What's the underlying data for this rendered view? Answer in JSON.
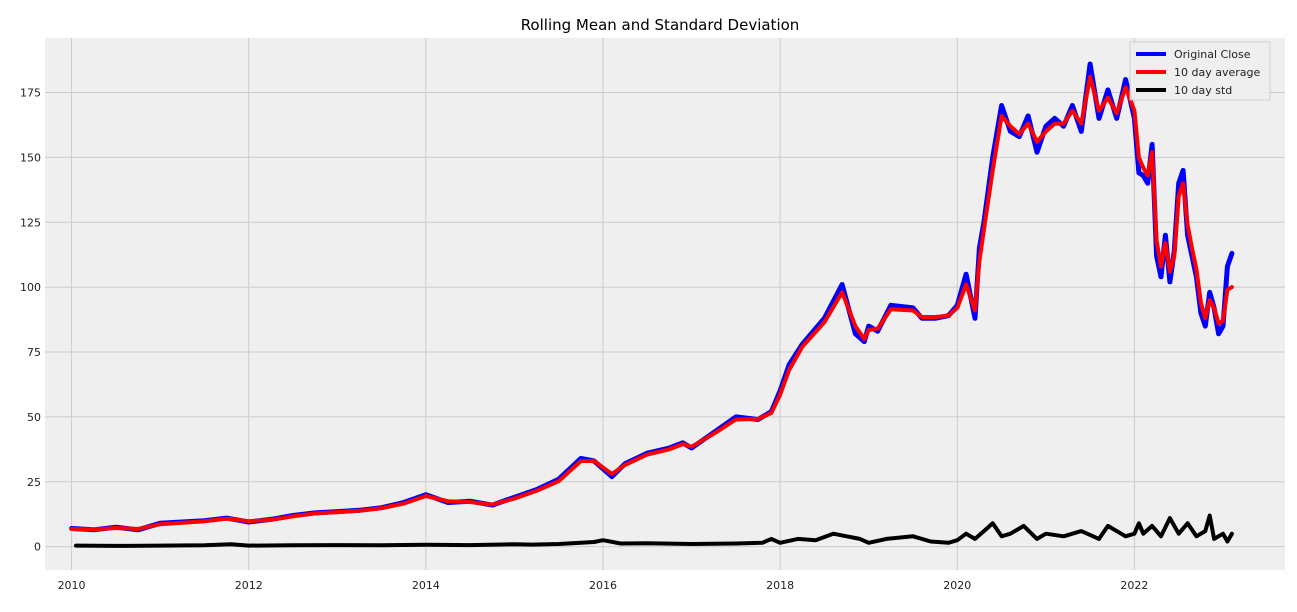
{
  "chart_data": {
    "type": "line",
    "title": "Rolling Mean and Standard Deviation",
    "xlabel": "",
    "ylabel": "",
    "xlim": [
      2009.7,
      2023.7
    ],
    "ylim": [
      -9,
      196
    ],
    "grid": true,
    "legend_position": "top-right",
    "x_ticks": [
      2010,
      2012,
      2014,
      2016,
      2018,
      2020,
      2022
    ],
    "y_ticks": [
      0,
      25,
      50,
      75,
      100,
      125,
      150,
      175
    ],
    "colors": {
      "background": "#efefef",
      "grid": "#cbcbcb",
      "original": "#0000ff",
      "average": "#ff0000",
      "std": "#000000"
    },
    "series": [
      {
        "name": "Original Close",
        "x": [
          2010.0,
          2010.25,
          2010.5,
          2010.75,
          2011.0,
          2011.25,
          2011.5,
          2011.75,
          2012.0,
          2012.25,
          2012.5,
          2012.75,
          2013.0,
          2013.25,
          2013.5,
          2013.75,
          2014.0,
          2014.25,
          2014.5,
          2014.75,
          2015.0,
          2015.25,
          2015.5,
          2015.75,
          2015.9,
          2016.1,
          2016.25,
          2016.5,
          2016.75,
          2016.9,
          2017.0,
          2017.25,
          2017.5,
          2017.75,
          2017.9,
          2018.0,
          2018.1,
          2018.25,
          2018.5,
          2018.7,
          2018.85,
          2018.95,
          2019.0,
          2019.1,
          2019.25,
          2019.5,
          2019.6,
          2019.75,
          2019.9,
          2020.0,
          2020.1,
          2020.2,
          2020.25,
          2020.3,
          2020.4,
          2020.5,
          2020.6,
          2020.7,
          2020.8,
          2020.9,
          2021.0,
          2021.1,
          2021.2,
          2021.3,
          2021.4,
          2021.5,
          2021.6,
          2021.7,
          2021.8,
          2021.9,
          2022.0,
          2022.05,
          2022.1,
          2022.15,
          2022.2,
          2022.25,
          2022.3,
          2022.35,
          2022.4,
          2022.45,
          2022.5,
          2022.55,
          2022.6,
          2022.65,
          2022.7,
          2022.75,
          2022.8,
          2022.85,
          2022.9,
          2022.95,
          2023.0,
          2023.05,
          2023.1
        ],
        "values": [
          7,
          6.5,
          7.5,
          6.5,
          9,
          9.5,
          10,
          11,
          9.5,
          10.5,
          12,
          13,
          13.5,
          14,
          15,
          17,
          20,
          17,
          17.5,
          16,
          19,
          22,
          26,
          34,
          33,
          27,
          32,
          36,
          38,
          40,
          38,
          44,
          50,
          49,
          52,
          60,
          70,
          78,
          88,
          101,
          82,
          79,
          85,
          83,
          93,
          92,
          88,
          88,
          89,
          93,
          105,
          88,
          115,
          125,
          150,
          170,
          160,
          158,
          166,
          152,
          162,
          165,
          162,
          170,
          160,
          186,
          165,
          176,
          165,
          180,
          165,
          144,
          143,
          140,
          155,
          112,
          104,
          120,
          102,
          114,
          140,
          145,
          120,
          112,
          104,
          90,
          85,
          98,
          92,
          82,
          85,
          108,
          113
        ]
      },
      {
        "name": "10 day average",
        "x": [
          2010.0,
          2010.25,
          2010.5,
          2010.75,
          2011.0,
          2011.25,
          2011.5,
          2011.75,
          2012.0,
          2012.25,
          2012.5,
          2012.75,
          2013.0,
          2013.25,
          2013.5,
          2013.75,
          2014.0,
          2014.25,
          2014.5,
          2014.75,
          2015.0,
          2015.25,
          2015.5,
          2015.75,
          2015.9,
          2016.1,
          2016.25,
          2016.5,
          2016.75,
          2016.9,
          2017.0,
          2017.25,
          2017.5,
          2017.75,
          2017.9,
          2018.0,
          2018.1,
          2018.25,
          2018.5,
          2018.7,
          2018.85,
          2018.95,
          2019.0,
          2019.1,
          2019.25,
          2019.5,
          2019.6,
          2019.75,
          2019.9,
          2020.0,
          2020.1,
          2020.2,
          2020.25,
          2020.3,
          2020.4,
          2020.5,
          2020.6,
          2020.7,
          2020.8,
          2020.9,
          2021.0,
          2021.1,
          2021.2,
          2021.3,
          2021.4,
          2021.5,
          2021.6,
          2021.7,
          2021.8,
          2021.9,
          2022.0,
          2022.05,
          2022.1,
          2022.15,
          2022.2,
          2022.25,
          2022.3,
          2022.35,
          2022.4,
          2022.45,
          2022.5,
          2022.55,
          2022.6,
          2022.65,
          2022.7,
          2022.75,
          2022.8,
          2022.85,
          2022.9,
          2022.95,
          2023.0,
          2023.05,
          2023.1
        ],
        "values": [
          6.8,
          6.6,
          7.2,
          6.8,
          8.6,
          9.2,
          9.8,
          10.8,
          9.8,
          10.3,
          11.7,
          12.8,
          13.3,
          13.8,
          14.8,
          16.6,
          19.5,
          17.5,
          17.2,
          16.2,
          18.5,
          21.5,
          25.2,
          33,
          33,
          28,
          31.5,
          35.5,
          37.5,
          39.5,
          38.5,
          43.5,
          49,
          49.2,
          51.5,
          58.5,
          68,
          77,
          86.5,
          98,
          85,
          80,
          83.5,
          84,
          91.5,
          91,
          88.5,
          88.5,
          89,
          92,
          101,
          91,
          110,
          122,
          145,
          166,
          162,
          159,
          163,
          156,
          160,
          163,
          163,
          168,
          163,
          181,
          168,
          173,
          167,
          177,
          168,
          150,
          146,
          143,
          152,
          118,
          108,
          117,
          106,
          112,
          135,
          140,
          124,
          115,
          107,
          94,
          88,
          95,
          92,
          86,
          87,
          99,
          100
        ]
      },
      {
        "name": "10 day std",
        "x": [
          2010.05,
          2010.5,
          2011.0,
          2011.5,
          2011.8,
          2012.0,
          2012.5,
          2013.0,
          2013.5,
          2014.0,
          2014.5,
          2015.0,
          2015.2,
          2015.5,
          2015.9,
          2016.0,
          2016.2,
          2016.5,
          2017.0,
          2017.5,
          2017.8,
          2017.9,
          2018.0,
          2018.2,
          2018.4,
          2018.6,
          2018.75,
          2018.9,
          2019.0,
          2019.2,
          2019.5,
          2019.7,
          2019.9,
          2020.0,
          2020.1,
          2020.2,
          2020.3,
          2020.4,
          2020.5,
          2020.6,
          2020.75,
          2020.9,
          2021.0,
          2021.2,
          2021.4,
          2021.6,
          2021.7,
          2021.9,
          2022.0,
          2022.05,
          2022.1,
          2022.2,
          2022.3,
          2022.4,
          2022.5,
          2022.6,
          2022.7,
          2022.8,
          2022.85,
          2022.9,
          2023.0,
          2023.05,
          2023.1
        ],
        "values": [
          0.4,
          0.3,
          0.4,
          0.5,
          0.9,
          0.4,
          0.5,
          0.6,
          0.5,
          0.7,
          0.6,
          0.9,
          0.8,
          1.0,
          1.8,
          2.5,
          1.2,
          1.3,
          1.0,
          1.2,
          1.5,
          3,
          1.5,
          3,
          2.5,
          5,
          4,
          3,
          1.5,
          3,
          4,
          2,
          1.5,
          2.5,
          5,
          3,
          6,
          9,
          4,
          5,
          8,
          3,
          5,
          4,
          6,
          3,
          8,
          4,
          5,
          9,
          5,
          8,
          4,
          11,
          5,
          9,
          4,
          6,
          12,
          3,
          5,
          2,
          5
        ]
      }
    ]
  }
}
